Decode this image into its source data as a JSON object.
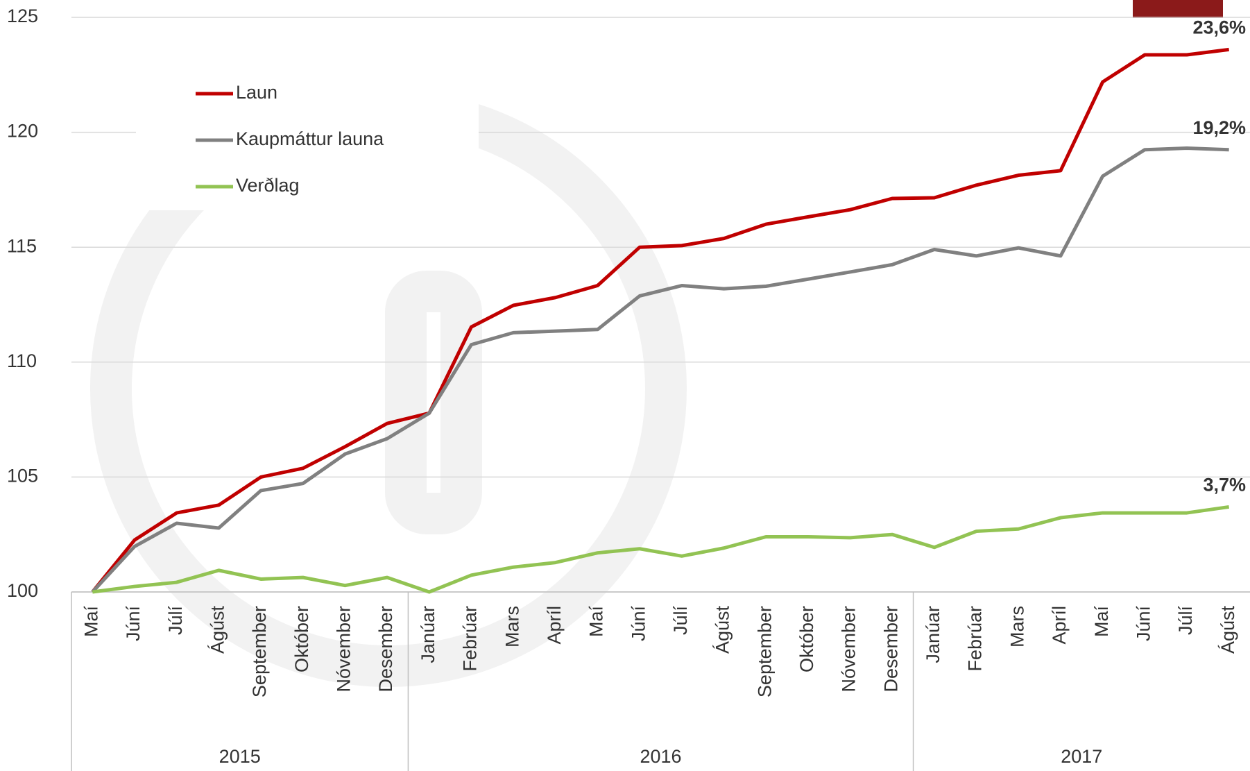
{
  "chart_data": {
    "type": "line",
    "categories": [
      "Maí",
      "Júní",
      "Júlí",
      "Ágúst",
      "September",
      "Október",
      "Nóvember",
      "Desember",
      "Janúar",
      "Febrúar",
      "Mars",
      "Apríl",
      "Maí",
      "Júní",
      "Júlí",
      "Ágúst",
      "September",
      "Október",
      "Nóvember",
      "Desember",
      "Janúar",
      "Febrúar",
      "Mars",
      "Apríl",
      "Maí",
      "Júní",
      "Júlí",
      "Ágúst"
    ],
    "years": [
      "2015",
      null,
      null,
      null,
      null,
      null,
      null,
      null,
      "2016",
      null,
      null,
      null,
      null,
      null,
      null,
      null,
      null,
      null,
      null,
      null,
      "2017",
      null,
      null,
      null,
      null,
      null,
      null,
      null
    ],
    "series": [
      {
        "name": "Laun",
        "color": "#c00000",
        "end_label": "23,6%",
        "values": [
          100,
          102.26,
          103.44,
          103.78,
          105.0,
          105.38,
          106.32,
          107.33,
          107.78,
          111.53,
          112.47,
          112.81,
          113.33,
          115.0,
          115.07,
          115.38,
          116.0,
          116.32,
          116.63,
          117.12,
          117.15,
          117.7,
          118.13,
          118.33,
          122.19,
          123.37,
          123.37,
          123.6
        ]
      },
      {
        "name": "Kaupmáttur launa",
        "color": "#808080",
        "end_label": "19,2%",
        "values": [
          100,
          101.98,
          102.99,
          102.78,
          104.41,
          104.72,
          106.0,
          106.67,
          107.78,
          110.76,
          111.28,
          111.35,
          111.42,
          112.88,
          113.33,
          113.19,
          113.3,
          113.61,
          113.92,
          114.24,
          114.9,
          114.62,
          114.97,
          114.62,
          118.09,
          119.24,
          119.31,
          119.24
        ]
      },
      {
        "name": "Verðlag",
        "color": "#92c353",
        "end_label": "3,7%",
        "values": [
          100,
          100.24,
          100.42,
          100.94,
          100.56,
          100.63,
          100.28,
          100.63,
          100,
          100.73,
          101.08,
          101.28,
          101.7,
          101.88,
          101.56,
          101.91,
          102.4,
          102.4,
          102.36,
          102.5,
          101.94,
          102.64,
          102.74,
          103.23,
          103.44,
          103.44,
          103.44,
          103.7
        ]
      }
    ],
    "ylim": [
      100,
      125
    ],
    "yticks": [
      100,
      105,
      110,
      115,
      120,
      125
    ],
    "grid": true,
    "legend": "upper left"
  }
}
